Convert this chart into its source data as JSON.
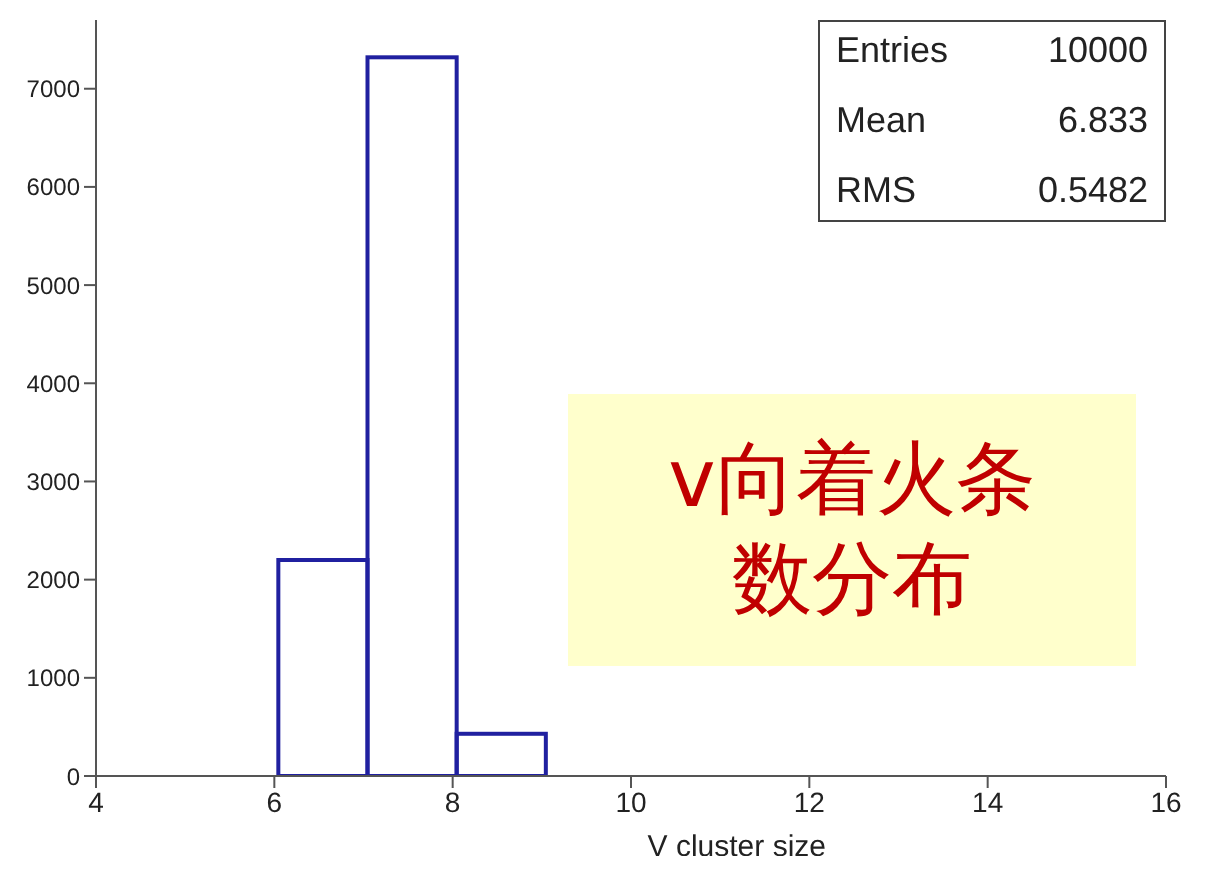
{
  "chart_data": {
    "type": "histogram",
    "xlabel": "V cluster size",
    "bins": [
      4,
      5,
      6,
      7,
      8,
      9,
      10,
      11,
      12,
      13,
      14,
      15,
      16
    ],
    "values": [
      0,
      0,
      2200,
      7320,
      430,
      0,
      0,
      0,
      0,
      0,
      0,
      0
    ],
    "color": "#2020a0",
    "xlim": [
      4,
      16
    ],
    "xticks": [
      4,
      6,
      8,
      10,
      12,
      14,
      16
    ],
    "ylim": [
      0,
      7700
    ],
    "yticks": [
      0,
      1000,
      2000,
      3000,
      4000,
      5000,
      6000,
      7000
    ],
    "grid": false,
    "annotations": [
      "Entries",
      "10000",
      "Mean",
      "6.833",
      "RMS",
      "0.5482",
      "v向着火条数分布"
    ]
  }
}
